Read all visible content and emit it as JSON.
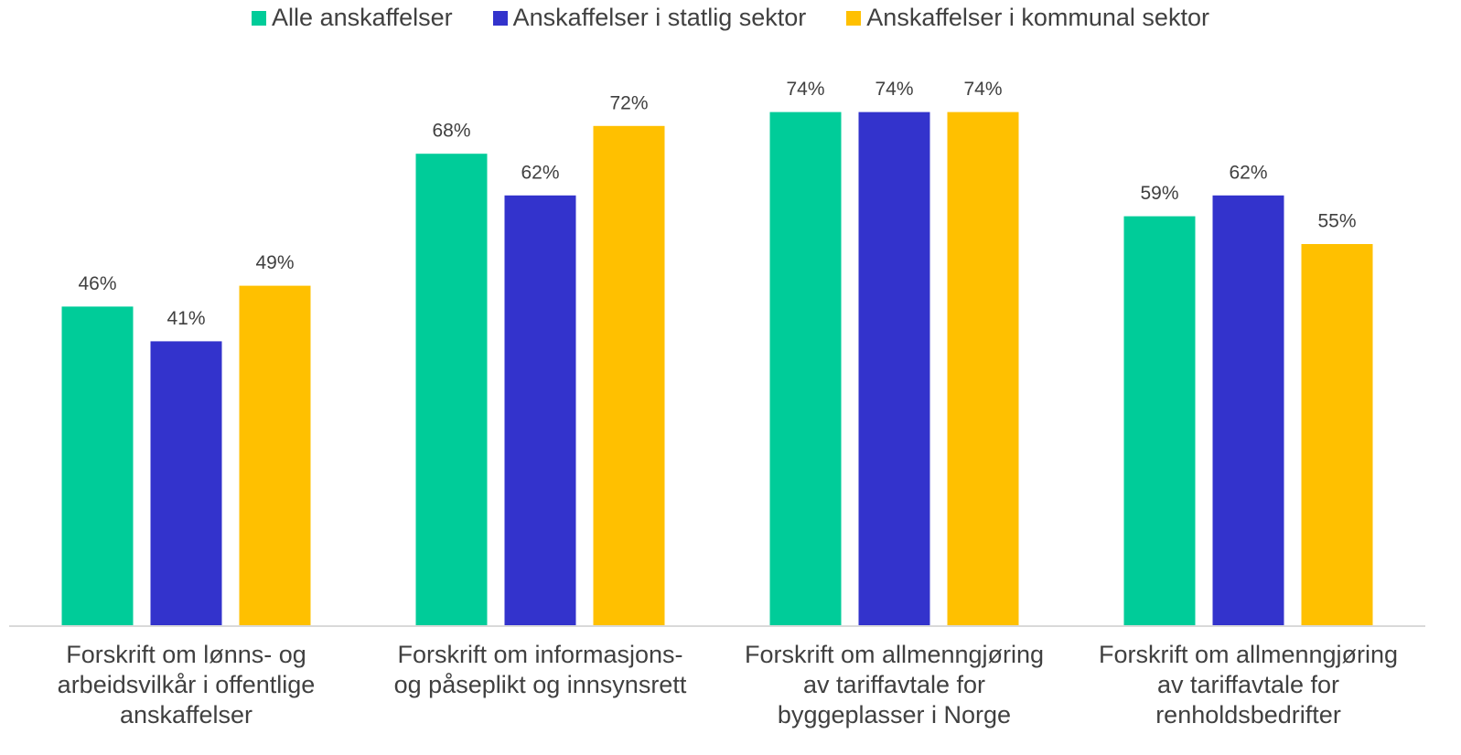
{
  "chart_data": {
    "type": "bar",
    "categories": [
      "Forskrift om lønns- og\narbeidsvilkår i offentlige\nanskaffelser",
      "Forskrift om informasjons-\nog påseplikt og innsynsrett",
      "Forskrift om allmenngjøring\nav tariffavtale for\nbyggeplasser i Norge",
      "Forskrift om allmenngjøring\nav tariffavtale for\nrenholdsbedrifter"
    ],
    "series": [
      {
        "name": "Alle anskaffelser",
        "color": "#00cc99",
        "values": [
          46,
          68,
          74,
          59
        ],
        "value_labels": [
          "46%",
          "68%",
          "74%",
          "59%"
        ]
      },
      {
        "name": "Anskaffelser i statlig sektor",
        "color": "#3333cc",
        "values": [
          41,
          62,
          74,
          62
        ],
        "value_labels": [
          "41%",
          "62%",
          "74%",
          "62%"
        ]
      },
      {
        "name": "Anskaffelser i kommunal sektor",
        "color": "#ffc000",
        "values": [
          49,
          72,
          74,
          55
        ],
        "value_labels": [
          "49%",
          "72%",
          "74%",
          "55%"
        ]
      }
    ],
    "ylim": [
      0,
      80
    ],
    "legend": "top"
  }
}
